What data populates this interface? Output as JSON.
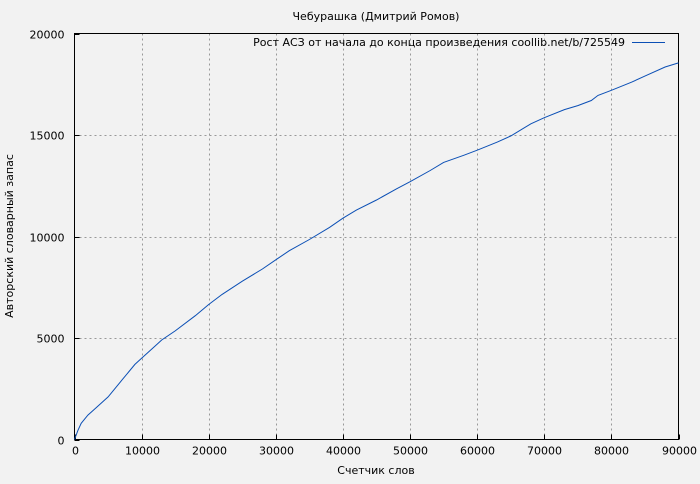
{
  "chart_data": {
    "type": "line",
    "title": "Чебурашка (Дмитрий Ромов)",
    "xlabel": "Счетчик слов",
    "ylabel": "Авторский словарный запас",
    "xlim": [
      0,
      90000
    ],
    "ylim": [
      0,
      20000
    ],
    "xticks": [
      0,
      10000,
      20000,
      30000,
      40000,
      50000,
      60000,
      70000,
      80000,
      90000
    ],
    "yticks": [
      0,
      5000,
      10000,
      15000,
      20000
    ],
    "grid": true,
    "legend_position": "top-right",
    "series": [
      {
        "name": "Рост АСЗ от начала до конца произведения coollib.net/b/725549",
        "color": "#0b4fb5",
        "x": [
          0,
          500,
          1000,
          2000,
          3000,
          5000,
          7000,
          9000,
          10000,
          12000,
          13000,
          15000,
          18000,
          20000,
          22000,
          25000,
          28000,
          30000,
          32000,
          35000,
          38000,
          40000,
          42000,
          45000,
          48000,
          50000,
          53000,
          55000,
          58000,
          60000,
          63000,
          65000,
          68000,
          70000,
          73000,
          75000,
          77000,
          78000,
          80000,
          83000,
          85000,
          88000,
          90000
        ],
        "y": [
          0,
          450,
          800,
          1200,
          1500,
          2100,
          2900,
          3700,
          4000,
          4600,
          4900,
          5350,
          6100,
          6650,
          7150,
          7800,
          8400,
          8850,
          9300,
          9850,
          10450,
          10900,
          11300,
          11800,
          12350,
          12700,
          13250,
          13650,
          14000,
          14250,
          14650,
          14950,
          15550,
          15850,
          16250,
          16450,
          16700,
          16950,
          17200,
          17600,
          17900,
          18350,
          18550
        ]
      }
    ]
  }
}
